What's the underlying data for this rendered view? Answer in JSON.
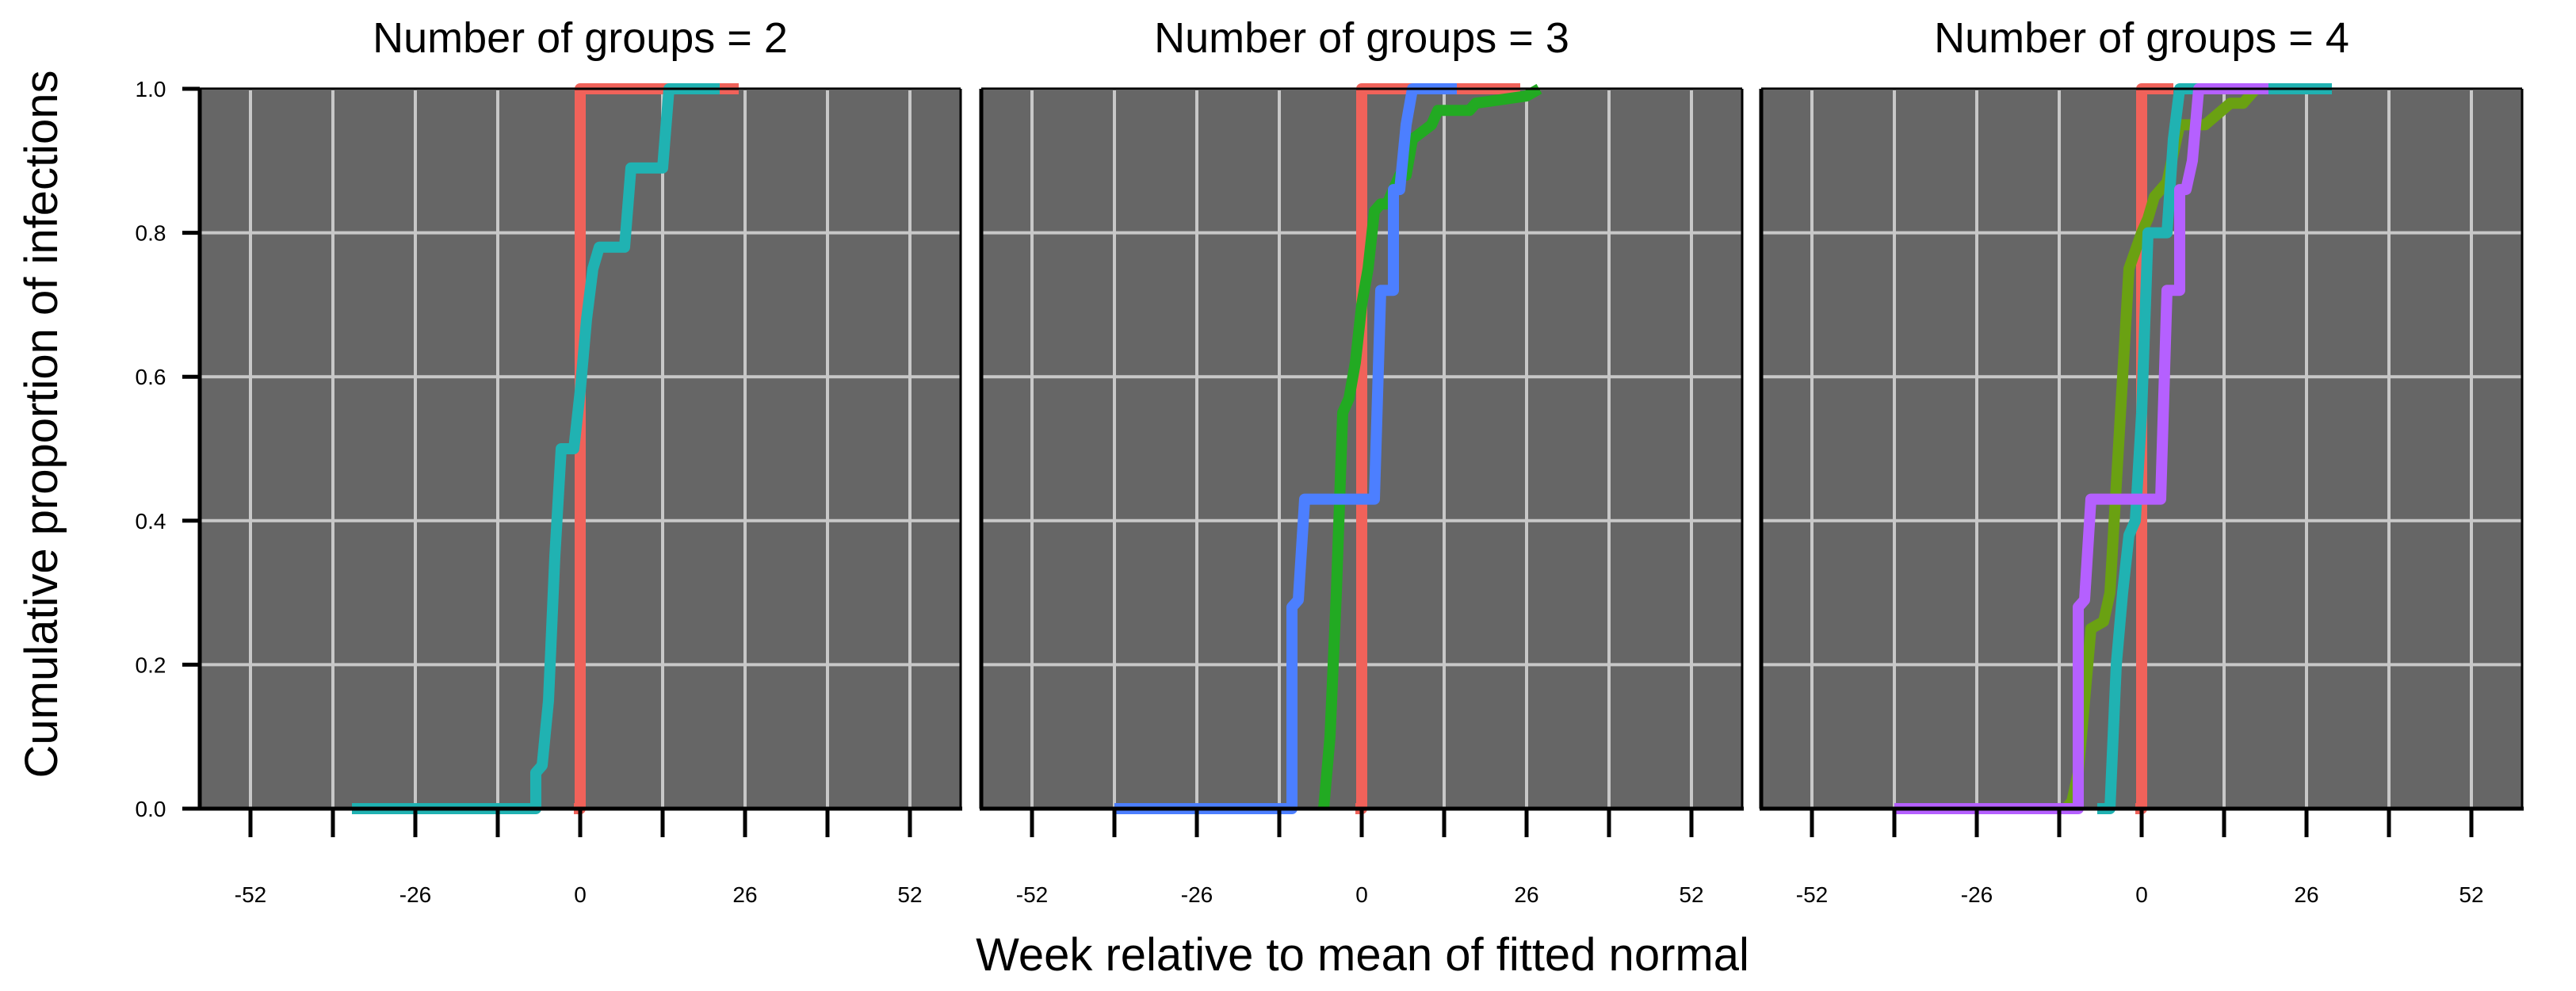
{
  "chart_data": {
    "type": "line",
    "xlabel": "Week relative to mean of fitted normal",
    "ylabel": "Cumulative proportion of infections",
    "xlim": [
      -60,
      60
    ],
    "ylim": [
      0,
      1
    ],
    "x_tick_values": [
      -52,
      -39,
      -26,
      -13,
      0,
      13,
      26,
      39,
      52
    ],
    "x_tick_labels": [
      "-52",
      "",
      "-26",
      "",
      "0",
      "",
      "26",
      "",
      "52"
    ],
    "y_tick_values": [
      0,
      0.2,
      0.4,
      0.6,
      0.8,
      1.0
    ],
    "y_tick_labels": [
      "0.0",
      "0.2",
      "0.4",
      "0.6",
      "0.8",
      "1.0"
    ],
    "grid": true,
    "colors": {
      "background": "#666666",
      "grid": "#c8c8c8",
      "red": "#f0625a",
      "teal": "#20b2b2",
      "green": "#22aa22",
      "blue": "#4c7fff",
      "olive": "#6aa112",
      "purple": "#b560ff"
    },
    "panels": [
      {
        "title": "Number of groups = 2",
        "series": [
          {
            "color": "#f0625a",
            "points": [
              [
                -1,
                0
              ],
              [
                0,
                0
              ],
              [
                0,
                1
              ],
              [
                25,
                1
              ]
            ]
          },
          {
            "color": "#20b2b2",
            "points": [
              [
                -36,
                0
              ],
              [
                -7,
                0
              ],
              [
                -7,
                0.05
              ],
              [
                -6,
                0.06
              ],
              [
                -5,
                0.15
              ],
              [
                -4,
                0.35
              ],
              [
                -3,
                0.5
              ],
              [
                -1,
                0.5
              ],
              [
                0,
                0.58
              ],
              [
                1,
                0.68
              ],
              [
                2,
                0.75
              ],
              [
                3,
                0.78
              ],
              [
                7,
                0.78
              ],
              [
                8,
                0.89
              ],
              [
                13,
                0.89
              ],
              [
                14,
                1
              ],
              [
                22,
                1
              ]
            ]
          }
        ]
      },
      {
        "title": "Number of groups = 3",
        "series": [
          {
            "color": "#f0625a",
            "points": [
              [
                -1,
                0
              ],
              [
                0,
                0
              ],
              [
                0,
                1
              ],
              [
                25,
                1
              ]
            ]
          },
          {
            "color": "#22aa22",
            "points": [
              [
                -6,
                0
              ],
              [
                -5,
                0.1
              ],
              [
                -4,
                0.3
              ],
              [
                -3,
                0.55
              ],
              [
                -2,
                0.57
              ],
              [
                -1,
                0.62
              ],
              [
                0,
                0.7
              ],
              [
                1,
                0.75
              ],
              [
                2,
                0.83
              ],
              [
                3,
                0.84
              ],
              [
                4,
                0.84
              ],
              [
                5,
                0.86
              ],
              [
                6,
                0.88
              ],
              [
                7,
                0.88
              ],
              [
                8,
                0.93
              ],
              [
                11,
                0.95
              ],
              [
                12,
                0.97
              ],
              [
                17,
                0.97
              ],
              [
                18,
                0.98
              ],
              [
                26,
                0.99
              ],
              [
                28,
                1
              ]
            ]
          },
          {
            "color": "#4c7fff",
            "points": [
              [
                -39,
                0
              ],
              [
                -11,
                0
              ],
              [
                -11,
                0.28
              ],
              [
                -10,
                0.29
              ],
              [
                -9,
                0.43
              ],
              [
                2,
                0.43
              ],
              [
                3,
                0.72
              ],
              [
                5,
                0.72
              ],
              [
                5,
                0.86
              ],
              [
                6,
                0.86
              ],
              [
                7,
                0.95
              ],
              [
                8,
                1
              ],
              [
                15,
                1
              ]
            ]
          }
        ]
      },
      {
        "title": "Number of groups = 4",
        "series": [
          {
            "color": "#f0625a",
            "points": [
              [
                -1,
                0
              ],
              [
                0,
                0
              ],
              [
                0,
                1
              ],
              [
                5,
                1
              ]
            ]
          },
          {
            "color": "#6aa112",
            "points": [
              [
                -12,
                0
              ],
              [
                -11,
                0.01
              ],
              [
                -10,
                0.05
              ],
              [
                -9,
                0.15
              ],
              [
                -8,
                0.25
              ],
              [
                -6,
                0.26
              ],
              [
                -5,
                0.3
              ],
              [
                -4,
                0.45
              ],
              [
                -3,
                0.6
              ],
              [
                -2,
                0.75
              ],
              [
                0,
                0.8
              ],
              [
                1,
                0.82
              ],
              [
                2,
                0.85
              ],
              [
                4,
                0.87
              ],
              [
                6,
                0.95
              ],
              [
                10,
                0.95
              ],
              [
                14,
                0.98
              ],
              [
                16,
                0.98
              ],
              [
                18,
                1
              ],
              [
                22,
                1
              ]
            ]
          },
          {
            "color": "#20b2b2",
            "points": [
              [
                -7,
                0
              ],
              [
                -5,
                0
              ],
              [
                -4,
                0.2
              ],
              [
                -3,
                0.3
              ],
              [
                -2,
                0.38
              ],
              [
                -1,
                0.4
              ],
              [
                0,
                0.55
              ],
              [
                1,
                0.8
              ],
              [
                4,
                0.8
              ],
              [
                5,
                0.93
              ],
              [
                6,
                1
              ],
              [
                30,
                1
              ]
            ]
          },
          {
            "color": "#b560ff",
            "points": [
              [
                -39,
                0
              ],
              [
                -10,
                0
              ],
              [
                -10,
                0.28
              ],
              [
                -9,
                0.29
              ],
              [
                -8,
                0.43
              ],
              [
                3,
                0.43
              ],
              [
                4,
                0.72
              ],
              [
                6,
                0.72
              ],
              [
                6,
                0.86
              ],
              [
                7,
                0.86
              ],
              [
                8,
                0.9
              ],
              [
                9,
                1
              ],
              [
                20,
                1
              ]
            ]
          }
        ]
      }
    ]
  }
}
